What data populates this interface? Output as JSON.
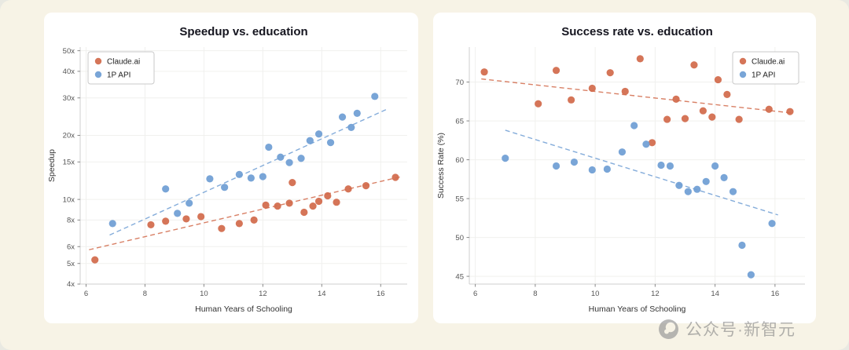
{
  "page": {
    "background": "#f7f3e6"
  },
  "watermark": {
    "text": "公众号·新智元",
    "logo": "xinzhiyuan-circle-logo"
  },
  "colors": {
    "claude_ai": "#d26a4b",
    "one_p_api": "#6f9ed4",
    "grid": "#f0f0ee"
  },
  "chart_data": [
    {
      "type": "scatter",
      "title": "Speedup vs. education",
      "xlabel": "Human Years of Schooling",
      "ylabel": "Speedup",
      "x_range": [
        5.8,
        16.9
      ],
      "x_ticks": [
        6,
        8,
        10,
        12,
        14,
        16
      ],
      "y_scale": "log",
      "y_range": [
        4,
        52
      ],
      "y_ticks": [
        4,
        5,
        6,
        8,
        10,
        15,
        20,
        30,
        40,
        50
      ],
      "y_tick_labels": [
        "4x",
        "5x",
        "6x",
        "8x",
        "10x",
        "15x",
        "20x",
        "30x",
        "40x",
        "50x"
      ],
      "grid": true,
      "legend_position": "top-left",
      "series": [
        {
          "name": "Claude.ai",
          "color": "#d26a4b",
          "trend": [
            [
              6.1,
              5.8
            ],
            [
              16.7,
              12.8
            ]
          ],
          "points": [
            [
              6.3,
              5.2
            ],
            [
              8.2,
              7.6
            ],
            [
              8.7,
              7.9
            ],
            [
              9.4,
              8.1
            ],
            [
              9.9,
              8.3
            ],
            [
              10.6,
              7.3
            ],
            [
              11.2,
              7.7
            ],
            [
              11.7,
              8.0
            ],
            [
              12.1,
              9.4
            ],
            [
              12.5,
              9.3
            ],
            [
              12.9,
              9.6
            ],
            [
              13.0,
              12.0
            ],
            [
              13.4,
              8.7
            ],
            [
              13.7,
              9.3
            ],
            [
              13.9,
              9.8
            ],
            [
              14.2,
              10.4
            ],
            [
              14.5,
              9.7
            ],
            [
              14.9,
              11.2
            ],
            [
              15.5,
              11.6
            ],
            [
              16.5,
              12.7
            ]
          ]
        },
        {
          "name": "1P API",
          "color": "#6f9ed4",
          "trend": [
            [
              6.8,
              6.8
            ],
            [
              16.2,
              26.5
            ]
          ],
          "points": [
            [
              6.9,
              7.7
            ],
            [
              8.7,
              11.2
            ],
            [
              9.1,
              8.6
            ],
            [
              9.5,
              9.6
            ],
            [
              10.2,
              12.5
            ],
            [
              10.7,
              11.4
            ],
            [
              11.2,
              13.1
            ],
            [
              11.6,
              12.6
            ],
            [
              12.0,
              12.8
            ],
            [
              12.2,
              17.6
            ],
            [
              12.6,
              15.8
            ],
            [
              12.9,
              14.9
            ],
            [
              13.3,
              15.6
            ],
            [
              13.6,
              18.9
            ],
            [
              13.9,
              20.3
            ],
            [
              14.3,
              18.5
            ],
            [
              14.7,
              24.4
            ],
            [
              15.0,
              21.8
            ],
            [
              15.2,
              25.4
            ],
            [
              15.8,
              30.5
            ]
          ]
        }
      ]
    },
    {
      "type": "scatter",
      "title": "Success rate vs. education",
      "xlabel": "Human Years of Schooling",
      "ylabel": "Success Rate (%)",
      "x_range": [
        5.8,
        17.0
      ],
      "x_ticks": [
        6,
        8,
        10,
        12,
        14,
        16
      ],
      "y_scale": "linear",
      "y_range": [
        44,
        74.5
      ],
      "y_ticks": [
        45,
        50,
        55,
        60,
        65,
        70
      ],
      "y_tick_labels": [
        "45",
        "50",
        "55",
        "60",
        "65",
        "70"
      ],
      "grid": true,
      "legend_position": "top-right",
      "series": [
        {
          "name": "Claude.ai",
          "color": "#d26a4b",
          "trend": [
            [
              6.2,
              70.4
            ],
            [
              16.6,
              66.0
            ]
          ],
          "points": [
            [
              6.3,
              71.3
            ],
            [
              8.1,
              67.2
            ],
            [
              8.7,
              71.5
            ],
            [
              9.2,
              67.7
            ],
            [
              9.9,
              69.2
            ],
            [
              10.5,
              71.2
            ],
            [
              11.0,
              68.8
            ],
            [
              11.5,
              73.0
            ],
            [
              11.9,
              62.2
            ],
            [
              12.4,
              65.2
            ],
            [
              12.7,
              67.8
            ],
            [
              13.0,
              65.3
            ],
            [
              13.3,
              72.2
            ],
            [
              13.6,
              66.3
            ],
            [
              13.9,
              65.5
            ],
            [
              14.1,
              70.3
            ],
            [
              14.4,
              68.4
            ],
            [
              14.8,
              65.2
            ],
            [
              15.8,
              66.5
            ],
            [
              16.5,
              66.2
            ]
          ]
        },
        {
          "name": "1P API",
          "color": "#6f9ed4",
          "trend": [
            [
              7.0,
              63.8
            ],
            [
              16.1,
              52.9
            ]
          ],
          "points": [
            [
              7.0,
              60.2
            ],
            [
              8.7,
              59.2
            ],
            [
              9.3,
              59.7
            ],
            [
              9.9,
              58.7
            ],
            [
              10.4,
              58.8
            ],
            [
              10.9,
              61.0
            ],
            [
              11.3,
              64.4
            ],
            [
              11.7,
              62.0
            ],
            [
              12.2,
              59.3
            ],
            [
              12.5,
              59.2
            ],
            [
              12.8,
              56.7
            ],
            [
              13.1,
              55.9
            ],
            [
              13.4,
              56.2
            ],
            [
              13.7,
              57.2
            ],
            [
              14.0,
              59.2
            ],
            [
              14.3,
              57.7
            ],
            [
              14.6,
              55.9
            ],
            [
              14.9,
              49.0
            ],
            [
              15.2,
              45.2
            ],
            [
              15.9,
              51.8
            ]
          ]
        }
      ]
    }
  ]
}
